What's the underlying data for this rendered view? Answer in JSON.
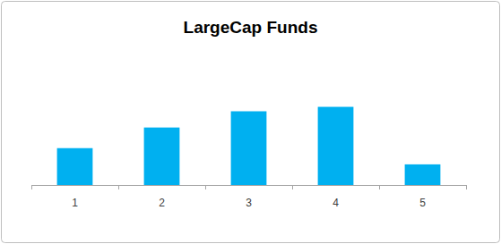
{
  "chart_data": {
    "type": "bar",
    "title": "LargeCap Funds",
    "categories": [
      "1",
      "2",
      "3",
      "4",
      "5"
    ],
    "values": [
      25,
      39,
      50,
      53,
      14
    ],
    "color": "#00b0f0",
    "ylim": [
      0,
      100
    ],
    "grid": false,
    "tick_labels": "x"
  }
}
